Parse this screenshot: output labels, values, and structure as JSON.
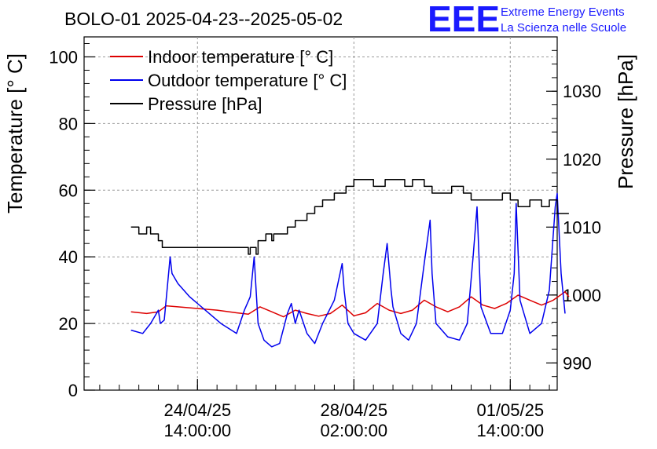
{
  "chart_data": {
    "type": "line",
    "title": "BOLO-01 2025-04-23--2025-05-02",
    "logo": {
      "text": "EEE",
      "line1": "Extreme Energy Events",
      "line2": "La Scienza nelle Scuole",
      "color": "#1a1aff"
    },
    "ylabel": "Temperature [° C]",
    "y2label": "Pressure [hPa]",
    "ylim": [
      0,
      106
    ],
    "y2lim": [
      986,
      1038
    ],
    "xlim_days": [
      -1.9,
      10.2
    ],
    "yticks": [
      "0",
      "20",
      "40",
      "60",
      "80",
      "100"
    ],
    "yticks_values": [
      0,
      20,
      40,
      60,
      80,
      100
    ],
    "y2ticks": [
      "990",
      "1000",
      "1010",
      "1020",
      "1030"
    ],
    "y2ticks_values": [
      990,
      1000,
      1010,
      1020,
      1030
    ],
    "xticks": [
      {
        "day": 1.0,
        "line1": "24/04/25",
        "line2": "14:00:00"
      },
      {
        "day": 5.0,
        "line1": "28/04/25",
        "line2": "02:00:00"
      },
      {
        "day": 9.0,
        "line1": "01/05/25",
        "line2": "14:00:00"
      }
    ],
    "grid": true,
    "legend_position": "top-left",
    "series": [
      {
        "name": "Indoor temperature [° C]",
        "axis": "left",
        "color": "#dd0000",
        "x": [
          -0.7,
          -0.3,
          0.0,
          0.2,
          0.5,
          1.0,
          1.5,
          2.0,
          2.3,
          2.6,
          2.9,
          3.2,
          3.5,
          3.8,
          4.1,
          4.4,
          4.7,
          5.0,
          5.3,
          5.6,
          5.9,
          6.2,
          6.5,
          6.8,
          7.1,
          7.4,
          7.7,
          8.0,
          8.3,
          8.6,
          8.9,
          9.2,
          9.5,
          9.8,
          10.1,
          10.4,
          10.5
        ],
        "y": [
          23.5,
          23.0,
          23.5,
          25.3,
          25.0,
          24.5,
          24.0,
          23.2,
          22.8,
          25.0,
          23.5,
          22.0,
          24.0,
          23.0,
          22.2,
          23.0,
          25.5,
          22.3,
          23.2,
          26.0,
          24.0,
          23.0,
          24.0,
          27.0,
          25.0,
          23.5,
          25.0,
          28.0,
          25.5,
          24.5,
          26.0,
          28.5,
          27.0,
          25.5,
          27.0,
          29.5,
          28.0
        ]
      },
      {
        "name": "Outdoor temperature [° C]",
        "axis": "left",
        "color": "#0000ee",
        "x": [
          -0.7,
          -0.4,
          -0.2,
          -0.1,
          0.0,
          0.05,
          0.15,
          0.3,
          0.35,
          0.5,
          0.8,
          1.2,
          1.6,
          2.0,
          2.2,
          2.35,
          2.45,
          2.55,
          2.7,
          2.9,
          3.1,
          3.3,
          3.4,
          3.5,
          3.6,
          3.8,
          4.0,
          4.2,
          4.5,
          4.7,
          4.75,
          4.85,
          5.0,
          5.3,
          5.6,
          5.75,
          5.85,
          5.95,
          6.0,
          6.2,
          6.4,
          6.6,
          6.8,
          6.95,
          7.0,
          7.1,
          7.4,
          7.7,
          7.9,
          8.05,
          8.15,
          8.25,
          8.5,
          8.8,
          9.0,
          9.1,
          9.15,
          9.25,
          9.5,
          9.8,
          10.0,
          10.15,
          10.2,
          10.3,
          10.4
        ],
        "y": [
          18.0,
          17.0,
          20.0,
          22.0,
          24.0,
          20.0,
          21.0,
          40.0,
          35.0,
          32.0,
          28.0,
          24.0,
          20.0,
          17.0,
          24.0,
          28.0,
          40.0,
          20.0,
          15.0,
          13.0,
          14.0,
          23.0,
          26.0,
          20.0,
          24.0,
          17.0,
          14.0,
          20.0,
          27.0,
          38.0,
          30.0,
          20.0,
          17.0,
          15.0,
          20.0,
          35.0,
          44.0,
          30.0,
          25.0,
          17.0,
          15.0,
          20.0,
          38.0,
          51.0,
          35.0,
          20.0,
          16.0,
          15.0,
          20.0,
          40.0,
          55.0,
          25.0,
          17.0,
          17.0,
          24.0,
          35.0,
          56.0,
          27.0,
          17.0,
          20.0,
          30.0,
          55.0,
          59.0,
          35.0,
          23.0
        ]
      },
      {
        "name": "Pressure [hPa]",
        "axis": "right",
        "color": "#000000",
        "x": [
          -0.7,
          -0.5,
          -0.3,
          -0.2,
          0.0,
          0.1,
          0.3,
          0.5,
          1.0,
          1.5,
          2.0,
          2.3,
          2.35,
          2.5,
          2.55,
          2.7,
          2.75,
          2.9,
          2.95,
          3.1,
          3.3,
          3.5,
          3.8,
          4.0,
          4.2,
          4.5,
          4.8,
          5.0,
          5.3,
          5.5,
          5.8,
          6.0,
          6.3,
          6.5,
          6.8,
          7.0,
          7.2,
          7.5,
          7.8,
          8.0,
          8.2,
          8.5,
          8.8,
          9.0,
          9.2,
          9.5,
          9.7,
          9.8,
          10.0,
          10.2,
          10.5
        ],
        "y": [
          1010,
          1009,
          1010,
          1009,
          1008,
          1007,
          1007,
          1007,
          1007,
          1007,
          1007,
          1006,
          1007,
          1006,
          1008,
          1008,
          1009,
          1008,
          1009,
          1009,
          1010,
          1011,
          1012,
          1013,
          1014,
          1015,
          1016,
          1017,
          1017,
          1016,
          1017,
          1017,
          1016,
          1017,
          1016,
          1015,
          1015,
          1016,
          1015,
          1014,
          1014,
          1014,
          1015,
          1014,
          1013,
          1014,
          1014,
          1013,
          1014,
          1012,
          1012
        ]
      }
    ]
  }
}
